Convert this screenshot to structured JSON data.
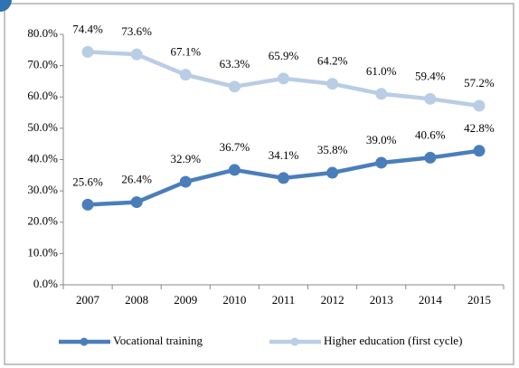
{
  "chart_data": {
    "type": "line",
    "categories": [
      "2007",
      "2008",
      "2009",
      "2010",
      "2011",
      "2012",
      "2013",
      "2014",
      "2015"
    ],
    "series": [
      {
        "name": "Vocational training",
        "color": "#4a7ebb",
        "values": [
          25.6,
          26.4,
          32.9,
          36.7,
          34.1,
          35.8,
          39.0,
          40.6,
          42.8
        ],
        "value_labels": [
          "25.6%",
          "26.4%",
          "32.9%",
          "36.7%",
          "34.1%",
          "35.8%",
          "39.0%",
          "40.6%",
          "42.8%"
        ]
      },
      {
        "name": "Higher education (first cycle)",
        "color": "#b9cde5",
        "values": [
          74.4,
          73.6,
          67.1,
          63.3,
          65.9,
          64.2,
          61.0,
          59.4,
          57.2
        ],
        "value_labels": [
          "74.4%",
          "73.6%",
          "67.1%",
          "63.3%",
          "65.9%",
          "64.2%",
          "61.0%",
          "59.4%",
          "57.2%"
        ]
      }
    ],
    "ylim": [
      0,
      80
    ],
    "yticks": [
      {
        "value": 0,
        "label": "0.0%"
      },
      {
        "value": 10,
        "label": "10.0%"
      },
      {
        "value": 20,
        "label": "20.0%"
      },
      {
        "value": 30,
        "label": "30.0%"
      },
      {
        "value": 40,
        "label": "40.0%"
      },
      {
        "value": 50,
        "label": "50.0%"
      },
      {
        "value": 60,
        "label": "60.0%"
      },
      {
        "value": 70,
        "label": "70.0%"
      },
      {
        "value": 80,
        "label": "80.0%"
      }
    ],
    "legend": "bottom"
  }
}
